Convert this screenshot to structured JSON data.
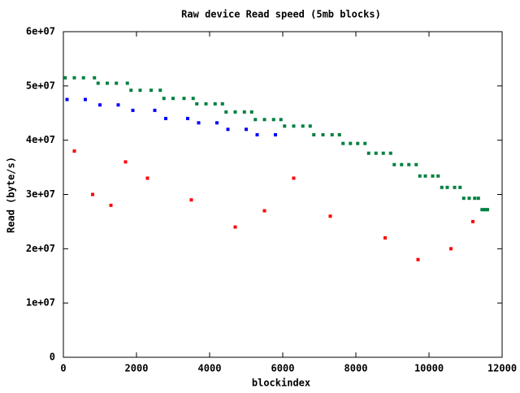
{
  "chart_data": {
    "type": "scatter",
    "title": "Raw device Read speed (5mb blocks)",
    "x_label": "blockindex",
    "y_label": "Read (byte/s)",
    "xlim": [
      0,
      12000
    ],
    "xticks": [
      0,
      2000,
      4000,
      6000,
      8000,
      10000,
      12000
    ],
    "ylim": [
      0,
      60000000
    ],
    "yticks": [
      0,
      {
        "value": 10000000,
        "label": "1e+07"
      },
      {
        "value": 20000000,
        "label": "2e+07"
      },
      {
        "value": 30000000,
        "label": "3e+07"
      },
      {
        "value": 40000000,
        "label": "4e+07"
      },
      {
        "value": 50000000,
        "label": "5e+07"
      },
      {
        "value": 60000000,
        "label": "6e+07"
      }
    ],
    "series": [
      {
        "color": "#008040",
        "x": [
          50,
          300,
          550,
          850,
          950,
          1200,
          1450,
          1750,
          1850,
          2100,
          2400,
          2650,
          2750,
          3000,
          3300,
          3550,
          3650,
          3900,
          4150,
          4350,
          4450,
          4700,
          4950,
          5150,
          5250,
          5500,
          5750,
          5950,
          6050,
          6300,
          6550,
          6750,
          6850,
          7100,
          7350,
          7550,
          7650,
          7850,
          8050,
          8250,
          8350,
          8550,
          8750,
          8950,
          9050,
          9250,
          9450,
          9650,
          9750,
          9900,
          10100,
          10250,
          10350,
          10500,
          10700,
          10850,
          10950,
          11100,
          11250,
          11350,
          11450,
          11500,
          11550,
          11600
        ],
        "values": [
          51500000,
          51500000,
          51500000,
          51500000,
          50500000,
          50500000,
          50500000,
          50500000,
          49200000,
          49200000,
          49200000,
          49200000,
          47700000,
          47700000,
          47700000,
          47700000,
          46700000,
          46700000,
          46700000,
          46700000,
          45200000,
          45200000,
          45200000,
          45200000,
          43800000,
          43800000,
          43800000,
          43800000,
          42600000,
          42600000,
          42600000,
          42600000,
          41000000,
          41000000,
          41000000,
          41000000,
          39400000,
          39400000,
          39400000,
          39400000,
          37600000,
          37600000,
          37600000,
          37600000,
          35500000,
          35500000,
          35500000,
          35500000,
          33400000,
          33400000,
          33400000,
          33400000,
          31300000,
          31300000,
          31300000,
          31300000,
          29300000,
          29300000,
          29300000,
          29300000,
          27200000,
          27200000,
          27200000,
          27200000
        ]
      },
      {
        "color": "#0000ff",
        "x": [
          100,
          600,
          1000,
          1500,
          1900,
          2500,
          2800,
          3400,
          3700,
          4200,
          4500,
          5000,
          5300,
          5800
        ],
        "values": [
          47500000,
          47500000,
          46500000,
          46500000,
          45500000,
          45500000,
          44000000,
          44000000,
          43200000,
          43200000,
          42000000,
          42000000,
          41000000,
          41000000
        ]
      },
      {
        "color": "#ff0000",
        "x": [
          300,
          800,
          1300,
          1700,
          2300,
          3500,
          4700,
          5500,
          6300,
          7300,
          8800,
          9700,
          10600,
          11200
        ],
        "values": [
          38000000,
          30000000,
          28000000,
          36000000,
          33000000,
          29000000,
          24000000,
          27000000,
          33000000,
          26000000,
          22000000,
          18000000,
          20000000,
          25000000
        ]
      }
    ]
  }
}
